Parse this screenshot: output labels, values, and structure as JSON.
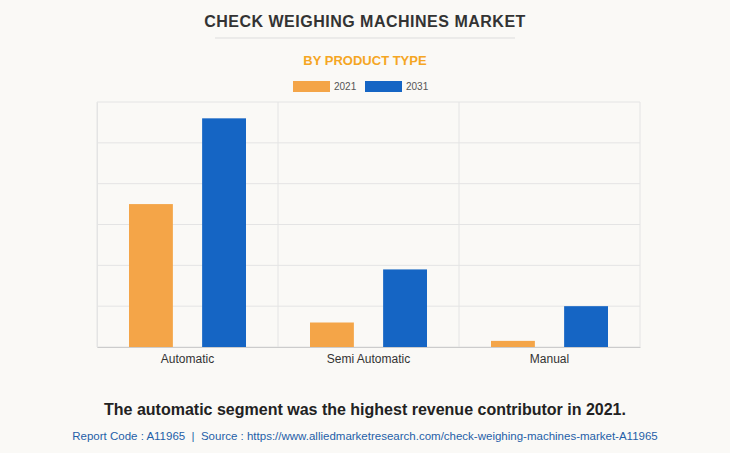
{
  "chart_data": {
    "type": "bar",
    "title": "CHECK WEIGHING MACHINES MARKET",
    "subtitle": "BY PRODUCT TYPE",
    "categories": [
      "Automatic",
      "Semi Automatic",
      "Manual"
    ],
    "series": [
      {
        "name": "2021",
        "color": "#f4a548",
        "values": [
          3.5,
          0.6,
          0.15
        ]
      },
      {
        "name": "2031",
        "color": "#1565c4",
        "values": [
          5.6,
          1.9,
          1.0
        ]
      }
    ],
    "ylim": [
      0,
      6
    ],
    "yticks": [
      0,
      1,
      2,
      3,
      4,
      5,
      6
    ],
    "grid": true,
    "tick_labels": "x",
    "legend": "top",
    "annotations": [
      "The automatic segment was the highest revenue contributor in 2021.",
      "Report Code : A11965  |  Source : https://www.alliedmarketresearch.com/check-weighing-machines-market-A11965"
    ]
  }
}
